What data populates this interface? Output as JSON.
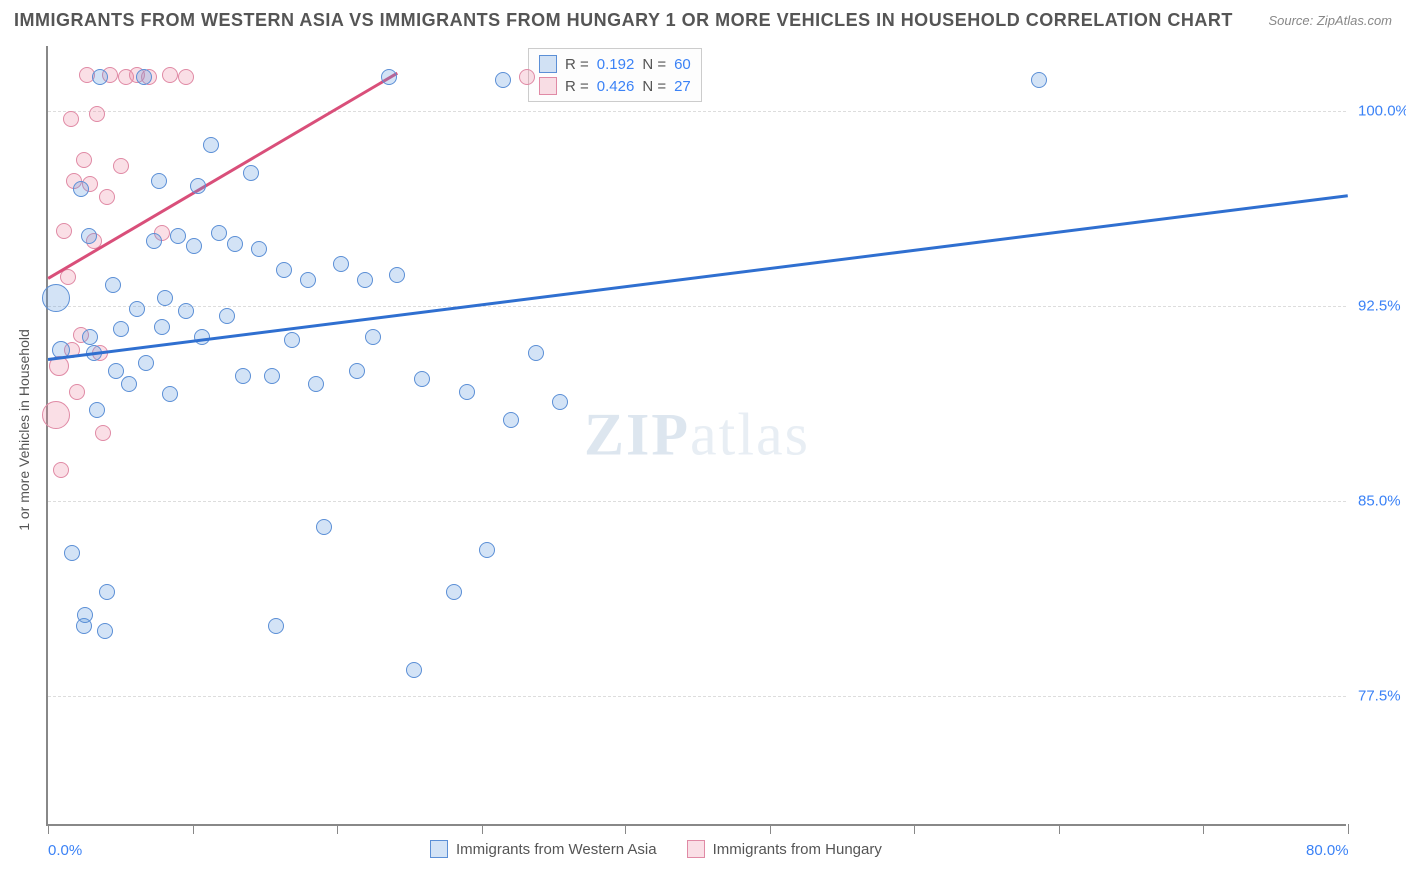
{
  "header": {
    "title": "IMMIGRANTS FROM WESTERN ASIA VS IMMIGRANTS FROM HUNGARY 1 OR MORE VEHICLES IN HOUSEHOLD CORRELATION CHART",
    "source": "Source: ZipAtlas.com"
  },
  "chart": {
    "type": "scatter",
    "ylabel": "1 or more Vehicles in Household",
    "xlim": [
      0,
      80
    ],
    "ylim": [
      72.5,
      102.5
    ],
    "background_color": "#ffffff",
    "grid_color": "#dddddd",
    "yticks": [
      {
        "v": 100.0,
        "label": "100.0%"
      },
      {
        "v": 92.5,
        "label": "92.5%"
      },
      {
        "v": 85.0,
        "label": "85.0%"
      },
      {
        "v": 77.5,
        "label": "77.5%"
      }
    ],
    "xticks_minor": [
      0,
      8.9,
      17.8,
      26.7,
      35.5,
      44.4,
      53.3,
      62.2,
      71.1,
      80
    ],
    "xticks_labels": [
      {
        "v": 0,
        "label": "0.0%"
      },
      {
        "v": 80,
        "label": "80.0%"
      }
    ],
    "watermark": {
      "pre": "ZIP",
      "post": "atlas"
    },
    "series_a": {
      "name": "Immigrants from Western Asia",
      "fill": "rgba(96, 153, 224, 0.28)",
      "stroke": "#5b8fd6",
      "line_color": "#2f6fd0",
      "R": "0.192",
      "N": "60",
      "trend": {
        "x1": 0,
        "y1": 90.5,
        "x2": 80,
        "y2": 96.8
      },
      "points": [
        {
          "x": 0.5,
          "y": 92.8,
          "r": 14
        },
        {
          "x": 0.8,
          "y": 90.8,
          "r": 9
        },
        {
          "x": 61.0,
          "y": 101.2,
          "r": 8
        },
        {
          "x": 1.5,
          "y": 83.0,
          "r": 8
        },
        {
          "x": 2.0,
          "y": 97.0,
          "r": 8
        },
        {
          "x": 2.2,
          "y": 80.2,
          "r": 8
        },
        {
          "x": 2.3,
          "y": 80.6,
          "r": 8
        },
        {
          "x": 2.5,
          "y": 95.2,
          "r": 8
        },
        {
          "x": 2.6,
          "y": 91.3,
          "r": 8
        },
        {
          "x": 2.8,
          "y": 90.7,
          "r": 8
        },
        {
          "x": 3.0,
          "y": 88.5,
          "r": 8
        },
        {
          "x": 3.2,
          "y": 101.3,
          "r": 8
        },
        {
          "x": 3.5,
          "y": 80.0,
          "r": 8
        },
        {
          "x": 3.6,
          "y": 81.5,
          "r": 8
        },
        {
          "x": 4.0,
          "y": 93.3,
          "r": 8
        },
        {
          "x": 4.2,
          "y": 90.0,
          "r": 8
        },
        {
          "x": 4.5,
          "y": 91.6,
          "r": 8
        },
        {
          "x": 5.0,
          "y": 89.5,
          "r": 8
        },
        {
          "x": 5.5,
          "y": 92.4,
          "r": 8
        },
        {
          "x": 5.9,
          "y": 101.3,
          "r": 8
        },
        {
          "x": 6.0,
          "y": 90.3,
          "r": 8
        },
        {
          "x": 6.5,
          "y": 95.0,
          "r": 8
        },
        {
          "x": 6.8,
          "y": 97.3,
          "r": 8
        },
        {
          "x": 7.0,
          "y": 91.7,
          "r": 8
        },
        {
          "x": 7.2,
          "y": 92.8,
          "r": 8
        },
        {
          "x": 7.5,
          "y": 89.1,
          "r": 8
        },
        {
          "x": 8.0,
          "y": 95.2,
          "r": 8
        },
        {
          "x": 8.5,
          "y": 92.3,
          "r": 8
        },
        {
          "x": 9.0,
          "y": 94.8,
          "r": 8
        },
        {
          "x": 9.2,
          "y": 97.1,
          "r": 8
        },
        {
          "x": 9.5,
          "y": 91.3,
          "r": 8
        },
        {
          "x": 10.0,
          "y": 98.7,
          "r": 8
        },
        {
          "x": 10.5,
          "y": 95.3,
          "r": 8
        },
        {
          "x": 11.0,
          "y": 92.1,
          "r": 8
        },
        {
          "x": 11.5,
          "y": 94.9,
          "r": 8
        },
        {
          "x": 12.0,
          "y": 89.8,
          "r": 8
        },
        {
          "x": 12.5,
          "y": 97.6,
          "r": 8
        },
        {
          "x": 13.0,
          "y": 94.7,
          "r": 8
        },
        {
          "x": 13.8,
          "y": 89.8,
          "r": 8
        },
        {
          "x": 14.0,
          "y": 80.2,
          "r": 8
        },
        {
          "x": 14.5,
          "y": 93.9,
          "r": 8
        },
        {
          "x": 15.0,
          "y": 91.2,
          "r": 8
        },
        {
          "x": 16.0,
          "y": 93.5,
          "r": 8
        },
        {
          "x": 16.5,
          "y": 89.5,
          "r": 8
        },
        {
          "x": 17.0,
          "y": 84.0,
          "r": 8
        },
        {
          "x": 18.0,
          "y": 94.1,
          "r": 8
        },
        {
          "x": 19.0,
          "y": 90.0,
          "r": 8
        },
        {
          "x": 19.5,
          "y": 93.5,
          "r": 8
        },
        {
          "x": 20.0,
          "y": 91.3,
          "r": 8
        },
        {
          "x": 21.0,
          "y": 101.3,
          "r": 8
        },
        {
          "x": 21.5,
          "y": 93.7,
          "r": 8
        },
        {
          "x": 22.5,
          "y": 78.5,
          "r": 8
        },
        {
          "x": 23.0,
          "y": 89.7,
          "r": 8
        },
        {
          "x": 25.0,
          "y": 81.5,
          "r": 8
        },
        {
          "x": 25.8,
          "y": 89.2,
          "r": 8
        },
        {
          "x": 27.0,
          "y": 83.1,
          "r": 8
        },
        {
          "x": 28.0,
          "y": 101.2,
          "r": 8
        },
        {
          "x": 28.5,
          "y": 88.1,
          "r": 8
        },
        {
          "x": 30.0,
          "y": 90.7,
          "r": 8
        },
        {
          "x": 31.5,
          "y": 88.8,
          "r": 8
        }
      ]
    },
    "series_b": {
      "name": "Immigrants from Hungary",
      "fill": "rgba(235, 130, 160, 0.26)",
      "stroke": "#e08aa5",
      "line_color": "#d94f7a",
      "R": "0.426",
      "N": "27",
      "trend": {
        "x1": 0,
        "y1": 93.6,
        "x2": 21.5,
        "y2": 101.5
      },
      "points": [
        {
          "x": 0.5,
          "y": 88.3,
          "r": 14
        },
        {
          "x": 0.7,
          "y": 90.2,
          "r": 10
        },
        {
          "x": 0.8,
          "y": 86.2,
          "r": 8
        },
        {
          "x": 1.0,
          "y": 95.4,
          "r": 8
        },
        {
          "x": 1.2,
          "y": 93.6,
          "r": 8
        },
        {
          "x": 1.4,
          "y": 99.7,
          "r": 8
        },
        {
          "x": 1.5,
          "y": 90.8,
          "r": 8
        },
        {
          "x": 1.6,
          "y": 97.3,
          "r": 8
        },
        {
          "x": 1.8,
          "y": 89.2,
          "r": 8
        },
        {
          "x": 2.0,
          "y": 91.4,
          "r": 8
        },
        {
          "x": 2.2,
          "y": 98.1,
          "r": 8
        },
        {
          "x": 2.4,
          "y": 101.4,
          "r": 8
        },
        {
          "x": 2.6,
          "y": 97.2,
          "r": 8
        },
        {
          "x": 2.8,
          "y": 95.0,
          "r": 8
        },
        {
          "x": 3.0,
          "y": 99.9,
          "r": 8
        },
        {
          "x": 3.2,
          "y": 90.7,
          "r": 8
        },
        {
          "x": 3.4,
          "y": 87.6,
          "r": 8
        },
        {
          "x": 3.6,
          "y": 96.7,
          "r": 8
        },
        {
          "x": 3.8,
          "y": 101.4,
          "r": 8
        },
        {
          "x": 4.5,
          "y": 97.9,
          "r": 8
        },
        {
          "x": 4.8,
          "y": 101.3,
          "r": 8
        },
        {
          "x": 5.5,
          "y": 101.4,
          "r": 8
        },
        {
          "x": 6.2,
          "y": 101.3,
          "r": 8
        },
        {
          "x": 7.0,
          "y": 95.3,
          "r": 8
        },
        {
          "x": 7.5,
          "y": 101.4,
          "r": 8
        },
        {
          "x": 8.5,
          "y": 101.3,
          "r": 8
        },
        {
          "x": 29.5,
          "y": 101.3,
          "r": 8
        }
      ]
    },
    "legend_box": {
      "rows": [
        {
          "swatch_fill": "rgba(96,153,224,0.28)",
          "swatch_stroke": "#5b8fd6",
          "R_label": "R =",
          "R": "0.192",
          "N_label": " N =",
          "N": "60"
        },
        {
          "swatch_fill": "rgba(235,130,160,0.26)",
          "swatch_stroke": "#e08aa5",
          "R_label": "R =",
          "R": "0.426",
          "N_label": " N =",
          "N": "27"
        }
      ]
    }
  }
}
